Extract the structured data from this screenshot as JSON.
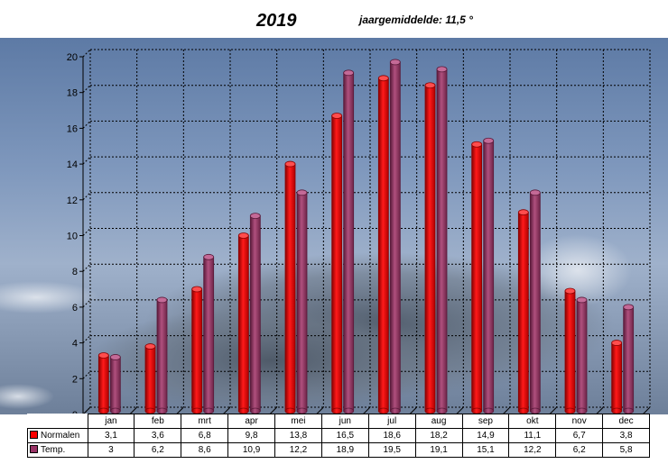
{
  "chart_data": {
    "type": "bar",
    "title": "2019",
    "subtitle": "jaargemiddelde: 11,5 °",
    "categories": [
      "jan",
      "feb",
      "mrt",
      "apr",
      "mei",
      "jun",
      "jul",
      "aug",
      "sep",
      "okt",
      "nov",
      "dec"
    ],
    "series": [
      {
        "name": "Normalen",
        "color": "#ff0000",
        "values": [
          3.1,
          3.6,
          6.8,
          9.8,
          13.8,
          16.5,
          18.6,
          18.2,
          14.9,
          11.1,
          6.7,
          3.8
        ],
        "labels": [
          "3,1",
          "3,6",
          "6,8",
          "9,8",
          "13,8",
          "16,5",
          "18,6",
          "18,2",
          "14,9",
          "11,1",
          "6,7",
          "3,8"
        ]
      },
      {
        "name": "Temp.",
        "color": "#993366",
        "values": [
          3,
          6.2,
          8.6,
          10.9,
          12.2,
          18.9,
          19.5,
          19.1,
          15.1,
          12.2,
          6.2,
          5.8
        ],
        "labels": [
          "3",
          "6,2",
          "8,6",
          "10,9",
          "12,2",
          "18,9",
          "19,5",
          "19,1",
          "15,1",
          "12,2",
          "6,2",
          "5,8"
        ]
      }
    ],
    "ylim": [
      0,
      20
    ],
    "yticks": [
      0,
      2,
      4,
      6,
      8,
      10,
      12,
      14,
      16,
      18,
      20
    ],
    "grid": true,
    "legend": "data table below chart",
    "background": "sky photo"
  }
}
